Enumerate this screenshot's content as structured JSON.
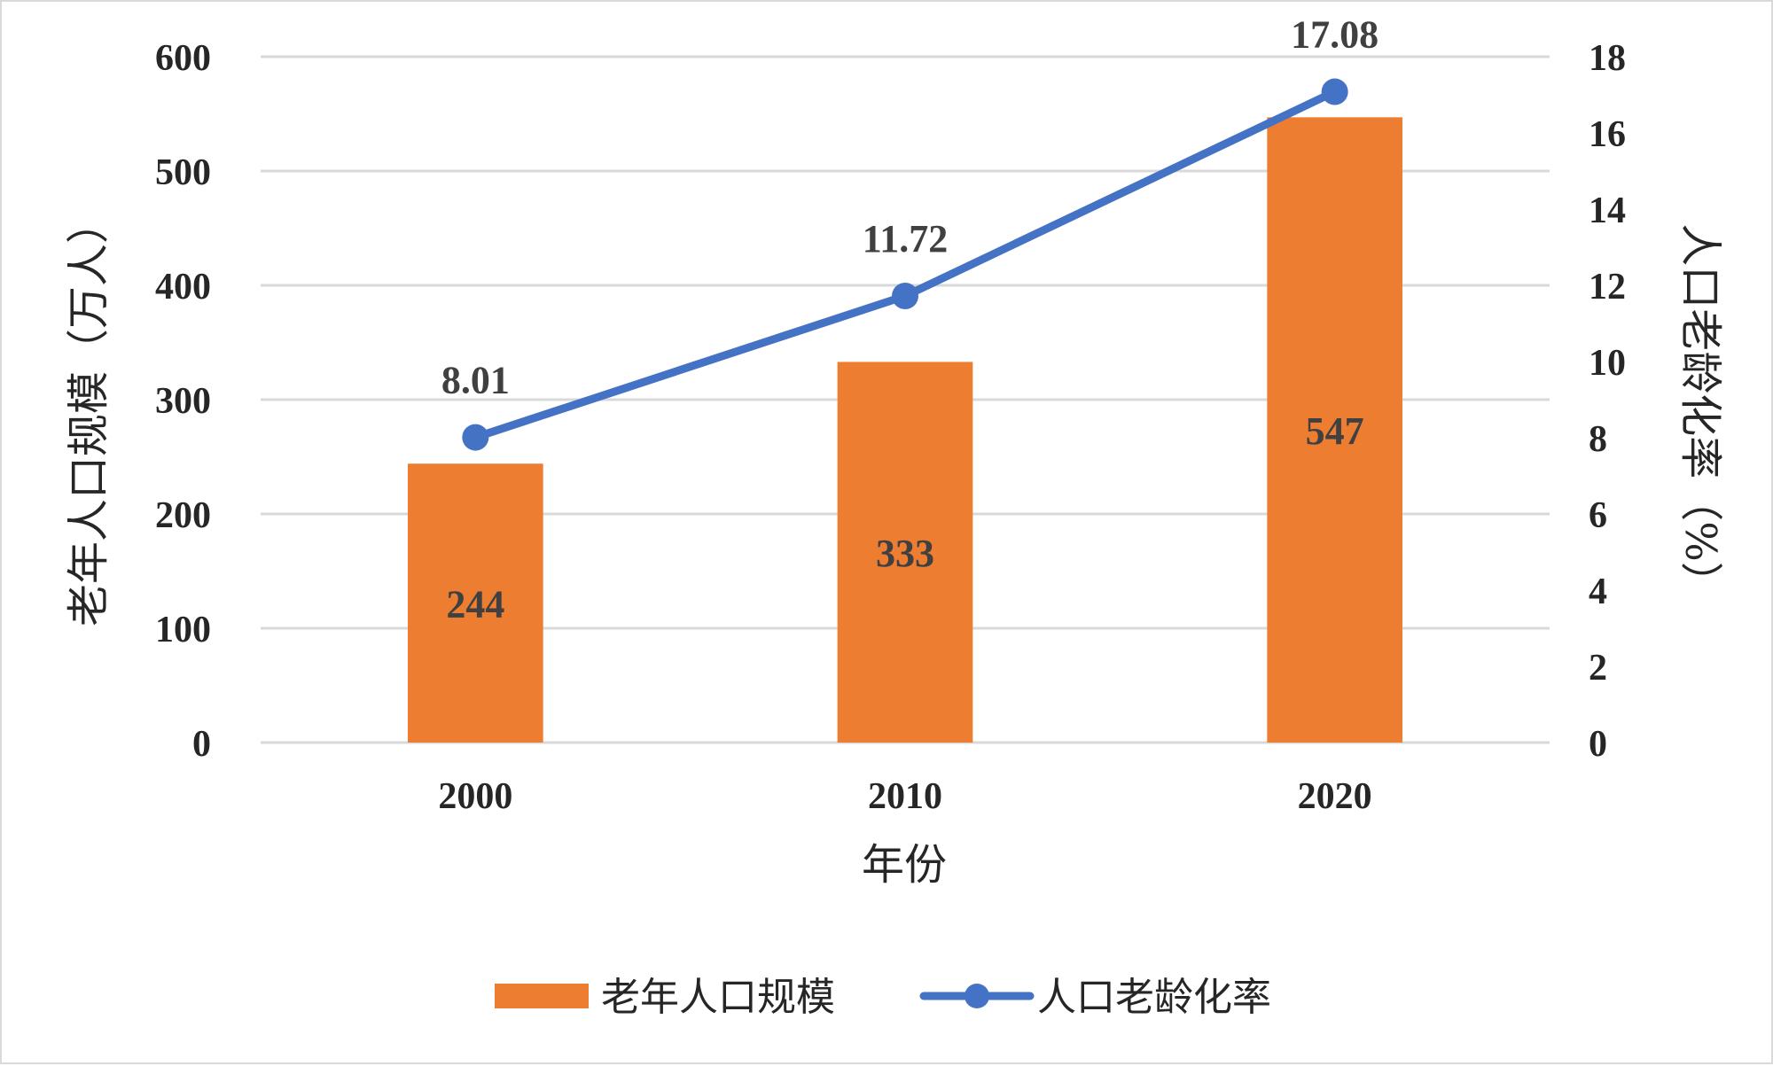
{
  "chart_data": {
    "type": "bar",
    "categories": [
      "2000",
      "2010",
      "2020"
    ],
    "series": [
      {
        "name": "老年人口规模",
        "type": "bar",
        "axis": "left",
        "values": [
          244,
          333,
          547
        ],
        "labels": [
          "244",
          "333",
          "547"
        ],
        "color": "#ed7d31"
      },
      {
        "name": "人口老龄化率",
        "type": "line",
        "axis": "right",
        "values": [
          8.01,
          11.72,
          17.08
        ],
        "labels": [
          "8.01",
          "11.72",
          "17.08"
        ],
        "color": "#4472c4"
      }
    ],
    "xlabel": "年份",
    "ylabel": "老年人口规模（万人）",
    "y2label": "人口老龄化率（%）",
    "ylim": [
      0,
      600
    ],
    "y2lim": [
      0,
      18
    ],
    "yticks": [
      "0",
      "100",
      "200",
      "300",
      "400",
      "500",
      "600"
    ],
    "y2ticks": [
      "0",
      "2",
      "4",
      "6",
      "8",
      "10",
      "12",
      "14",
      "16",
      "18"
    ],
    "grid": true,
    "legend": "bottom",
    "gridColor": "#d9d9d9"
  }
}
